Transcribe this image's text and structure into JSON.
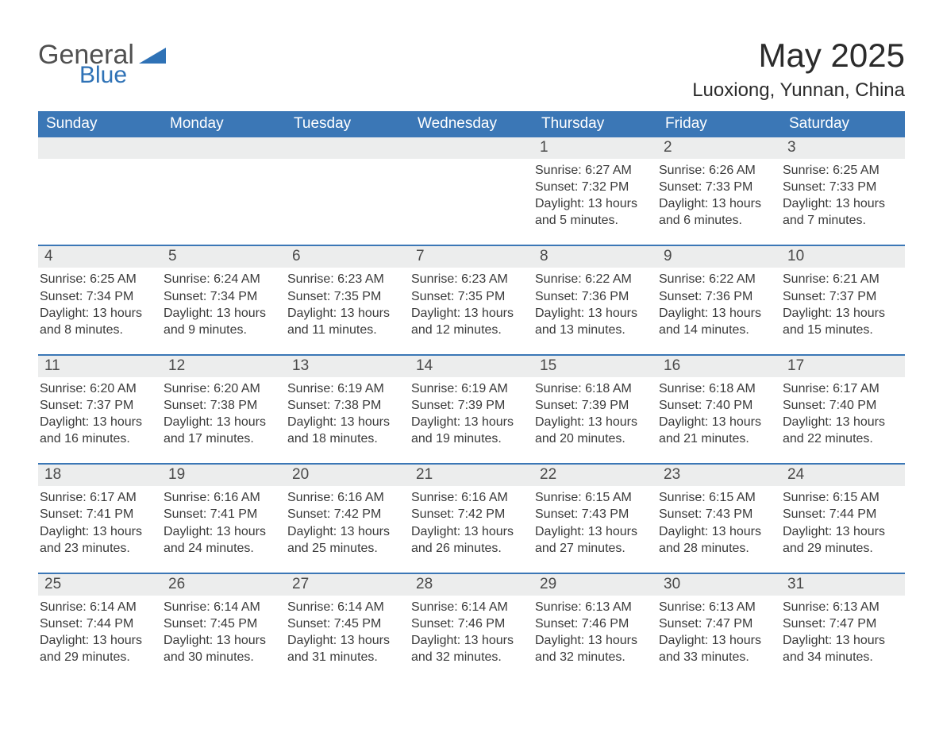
{
  "brand": {
    "general": "General",
    "blue": "Blue",
    "accent": "#2f72b6"
  },
  "title": "May 2025",
  "location": "Luoxiong, Yunnan, China",
  "colors": {
    "header_bg": "#3b77b6",
    "header_text": "#ffffff",
    "daynum_bg": "#eceded",
    "week_border": "#3b77b6",
    "text": "#3a3a3a"
  },
  "day_labels": [
    "Sunday",
    "Monday",
    "Tuesday",
    "Wednesday",
    "Thursday",
    "Friday",
    "Saturday"
  ],
  "weeks": [
    [
      null,
      null,
      null,
      null,
      {
        "d": "1",
        "sr": "6:27 AM",
        "ss": "7:32 PM",
        "dl": "13 hours and 5 minutes."
      },
      {
        "d": "2",
        "sr": "6:26 AM",
        "ss": "7:33 PM",
        "dl": "13 hours and 6 minutes."
      },
      {
        "d": "3",
        "sr": "6:25 AM",
        "ss": "7:33 PM",
        "dl": "13 hours and 7 minutes."
      }
    ],
    [
      {
        "d": "4",
        "sr": "6:25 AM",
        "ss": "7:34 PM",
        "dl": "13 hours and 8 minutes."
      },
      {
        "d": "5",
        "sr": "6:24 AM",
        "ss": "7:34 PM",
        "dl": "13 hours and 9 minutes."
      },
      {
        "d": "6",
        "sr": "6:23 AM",
        "ss": "7:35 PM",
        "dl": "13 hours and 11 minutes."
      },
      {
        "d": "7",
        "sr": "6:23 AM",
        "ss": "7:35 PM",
        "dl": "13 hours and 12 minutes."
      },
      {
        "d": "8",
        "sr": "6:22 AM",
        "ss": "7:36 PM",
        "dl": "13 hours and 13 minutes."
      },
      {
        "d": "9",
        "sr": "6:22 AM",
        "ss": "7:36 PM",
        "dl": "13 hours and 14 minutes."
      },
      {
        "d": "10",
        "sr": "6:21 AM",
        "ss": "7:37 PM",
        "dl": "13 hours and 15 minutes."
      }
    ],
    [
      {
        "d": "11",
        "sr": "6:20 AM",
        "ss": "7:37 PM",
        "dl": "13 hours and 16 minutes."
      },
      {
        "d": "12",
        "sr": "6:20 AM",
        "ss": "7:38 PM",
        "dl": "13 hours and 17 minutes."
      },
      {
        "d": "13",
        "sr": "6:19 AM",
        "ss": "7:38 PM",
        "dl": "13 hours and 18 minutes."
      },
      {
        "d": "14",
        "sr": "6:19 AM",
        "ss": "7:39 PM",
        "dl": "13 hours and 19 minutes."
      },
      {
        "d": "15",
        "sr": "6:18 AM",
        "ss": "7:39 PM",
        "dl": "13 hours and 20 minutes."
      },
      {
        "d": "16",
        "sr": "6:18 AM",
        "ss": "7:40 PM",
        "dl": "13 hours and 21 minutes."
      },
      {
        "d": "17",
        "sr": "6:17 AM",
        "ss": "7:40 PM",
        "dl": "13 hours and 22 minutes."
      }
    ],
    [
      {
        "d": "18",
        "sr": "6:17 AM",
        "ss": "7:41 PM",
        "dl": "13 hours and 23 minutes."
      },
      {
        "d": "19",
        "sr": "6:16 AM",
        "ss": "7:41 PM",
        "dl": "13 hours and 24 minutes."
      },
      {
        "d": "20",
        "sr": "6:16 AM",
        "ss": "7:42 PM",
        "dl": "13 hours and 25 minutes."
      },
      {
        "d": "21",
        "sr": "6:16 AM",
        "ss": "7:42 PM",
        "dl": "13 hours and 26 minutes."
      },
      {
        "d": "22",
        "sr": "6:15 AM",
        "ss": "7:43 PM",
        "dl": "13 hours and 27 minutes."
      },
      {
        "d": "23",
        "sr": "6:15 AM",
        "ss": "7:43 PM",
        "dl": "13 hours and 28 minutes."
      },
      {
        "d": "24",
        "sr": "6:15 AM",
        "ss": "7:44 PM",
        "dl": "13 hours and 29 minutes."
      }
    ],
    [
      {
        "d": "25",
        "sr": "6:14 AM",
        "ss": "7:44 PM",
        "dl": "13 hours and 29 minutes."
      },
      {
        "d": "26",
        "sr": "6:14 AM",
        "ss": "7:45 PM",
        "dl": "13 hours and 30 minutes."
      },
      {
        "d": "27",
        "sr": "6:14 AM",
        "ss": "7:45 PM",
        "dl": "13 hours and 31 minutes."
      },
      {
        "d": "28",
        "sr": "6:14 AM",
        "ss": "7:46 PM",
        "dl": "13 hours and 32 minutes."
      },
      {
        "d": "29",
        "sr": "6:13 AM",
        "ss": "7:46 PM",
        "dl": "13 hours and 32 minutes."
      },
      {
        "d": "30",
        "sr": "6:13 AM",
        "ss": "7:47 PM",
        "dl": "13 hours and 33 minutes."
      },
      {
        "d": "31",
        "sr": "6:13 AM",
        "ss": "7:47 PM",
        "dl": "13 hours and 34 minutes."
      }
    ]
  ],
  "labels": {
    "sunrise": "Sunrise: ",
    "sunset": "Sunset: ",
    "daylight": "Daylight: "
  }
}
